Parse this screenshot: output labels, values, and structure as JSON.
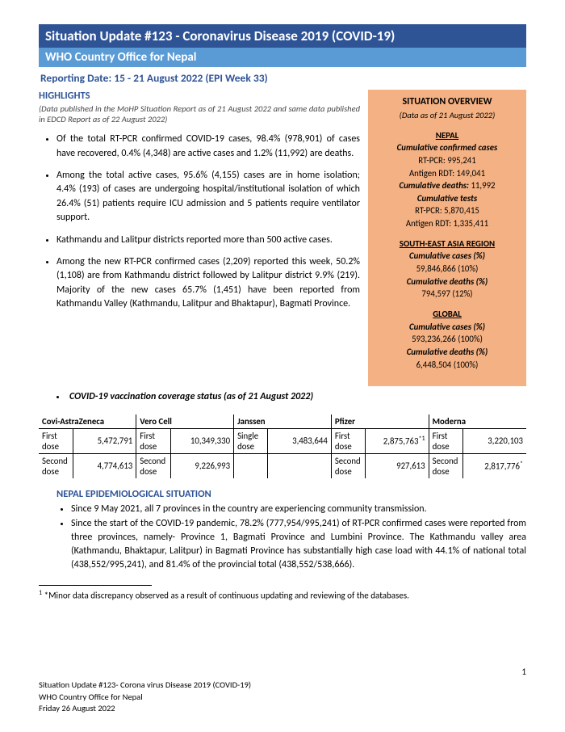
{
  "header": {
    "title_line1": "Situation Update #123 - Coronavirus Disease 2019 (COVID-19)",
    "title_line2": "WHO Country Office for Nepal",
    "reporting_date": "Reporting Date:  15 - 21 August 2022 (EPI Week 33)"
  },
  "highlights": {
    "heading": "HIGHLIGHTS",
    "sub_note": "(Data published in the MoHP Situation Report as of  21 August  2022 and same data published in EDCD Report as of 22 August  2022)",
    "items": [
      "Of the total RT-PCR confirmed COVID-19 cases, 98.4% (978,901) of cases have recovered, 0.4% (4,348) are active cases and 1.2% (11,992) are deaths.",
      "Among the total active cases, 95.6% (4,155) cases are in home isolation; 4.4% (193) of cases are undergoing hospital/institutional isolation of which 26.4% (51) patients require ICU admission and 5 patients require ventilator support.",
      "Kathmandu and Lalitpur districts reported more than 500 active cases.",
      "Among the new RT-PCR confirmed cases (2,209) reported this week, 50.2% (1,108) are from Kathmandu district followed by Lalitpur district 9.9% (219). Majority of the new cases 65.7% (1,451) have been reported from Kathmandu Valley (Kathmandu, Lalitpur and Bhaktapur), Bagmati Province."
    ],
    "vax_heading": "COVID-19 vaccination coverage status (as of 21  August  2022)"
  },
  "overview": {
    "title": "SITUATION OVERVIEW",
    "sub": "(Data as of 21 August  2022)",
    "nepal": {
      "name": "NEPAL",
      "cc_label": "Cumulative confirmed cases",
      "rtpcr": "RT-PCR: 995,241",
      "antigen": "Antigen RDT: 149,041",
      "cd_label": "Cumulative deaths: ",
      "cd_val": "11,992",
      "ct_label": "Cumulative tests",
      "ct_rtpcr": "RT-PCR: 5,870,415",
      "ct_antigen": "Antigen RDT: 1,335,411"
    },
    "sear": {
      "name": "SOUTH-EAST ASIA REGION",
      "cc_label": "Cumulative cases (%)",
      "cc_val": "59,846,866 (10%)",
      "cd_label": "Cumulative deaths (%)",
      "cd_val": "794,597 (12%)"
    },
    "global": {
      "name": "GLOBAL",
      "cc_label": "Cumulative cases (%)",
      "cc_val": "593,236,266 (100%)",
      "cd_label": "Cumulative deaths (%)",
      "cd_val": "6,448,504 (100%)"
    }
  },
  "vax_table": {
    "columns": [
      "Covi-AstraZeneca",
      "Vero Cell",
      "Janssen",
      "Pfizer",
      "Moderna"
    ],
    "rows": [
      {
        "cells": [
          {
            "l": "First dose",
            "v": "5,472,791"
          },
          {
            "l": "First dose",
            "v": "10,349,330"
          },
          {
            "l": "Single dose",
            "v": "3,483,644"
          },
          {
            "l": "First dose",
            "v": "2,875,763",
            "sup": "*1"
          },
          {
            "l": "First dose",
            "v": "3,220,103"
          }
        ]
      },
      {
        "cells": [
          {
            "l": "Second dose",
            "v": "4,774,613"
          },
          {
            "l": "Second dose",
            "v": "9,226,993"
          },
          {
            "l": "",
            "v": ""
          },
          {
            "l": "Second dose",
            "v": "927,613"
          },
          {
            "l": "Second dose",
            "v": "2,817,776",
            "sup": "*"
          }
        ]
      }
    ]
  },
  "epi": {
    "heading": "NEPAL EPIDEMIOLOGICAL SITUATION",
    "items": [
      "Since 9 May 2021, all 7 provinces in the country are experiencing community transmission.",
      "Since the start of the COVID-19 pandemic, 78.2% (777,954/995,241) of RT-PCR confirmed cases were reported from three provinces, namely- Province 1, Bagmati Province and Lumbini Province. The Kathmandu valley area (Kathmandu, Bhaktapur, Lalitpur) in Bagmati Province has substantially high case load with 44.1% of national total (438,552/995,241), and 81.4% of the provincial total (438,552/538,666)."
    ]
  },
  "footnote": {
    "marker": "1",
    "text": " *Minor data discrepancy observed as a result of continuous updating and reviewing of the databases."
  },
  "footer": {
    "line1": "Situation Update #123- Corona virus Disease 2019 (COVID-19)",
    "line2": "WHO Country Office for Nepal",
    "line3": "Friday 26 August 2022",
    "page": "1"
  },
  "colors": {
    "dark_blue": "#2f5496",
    "light_blue": "#5b9bd5",
    "orange": "#f4b183"
  }
}
